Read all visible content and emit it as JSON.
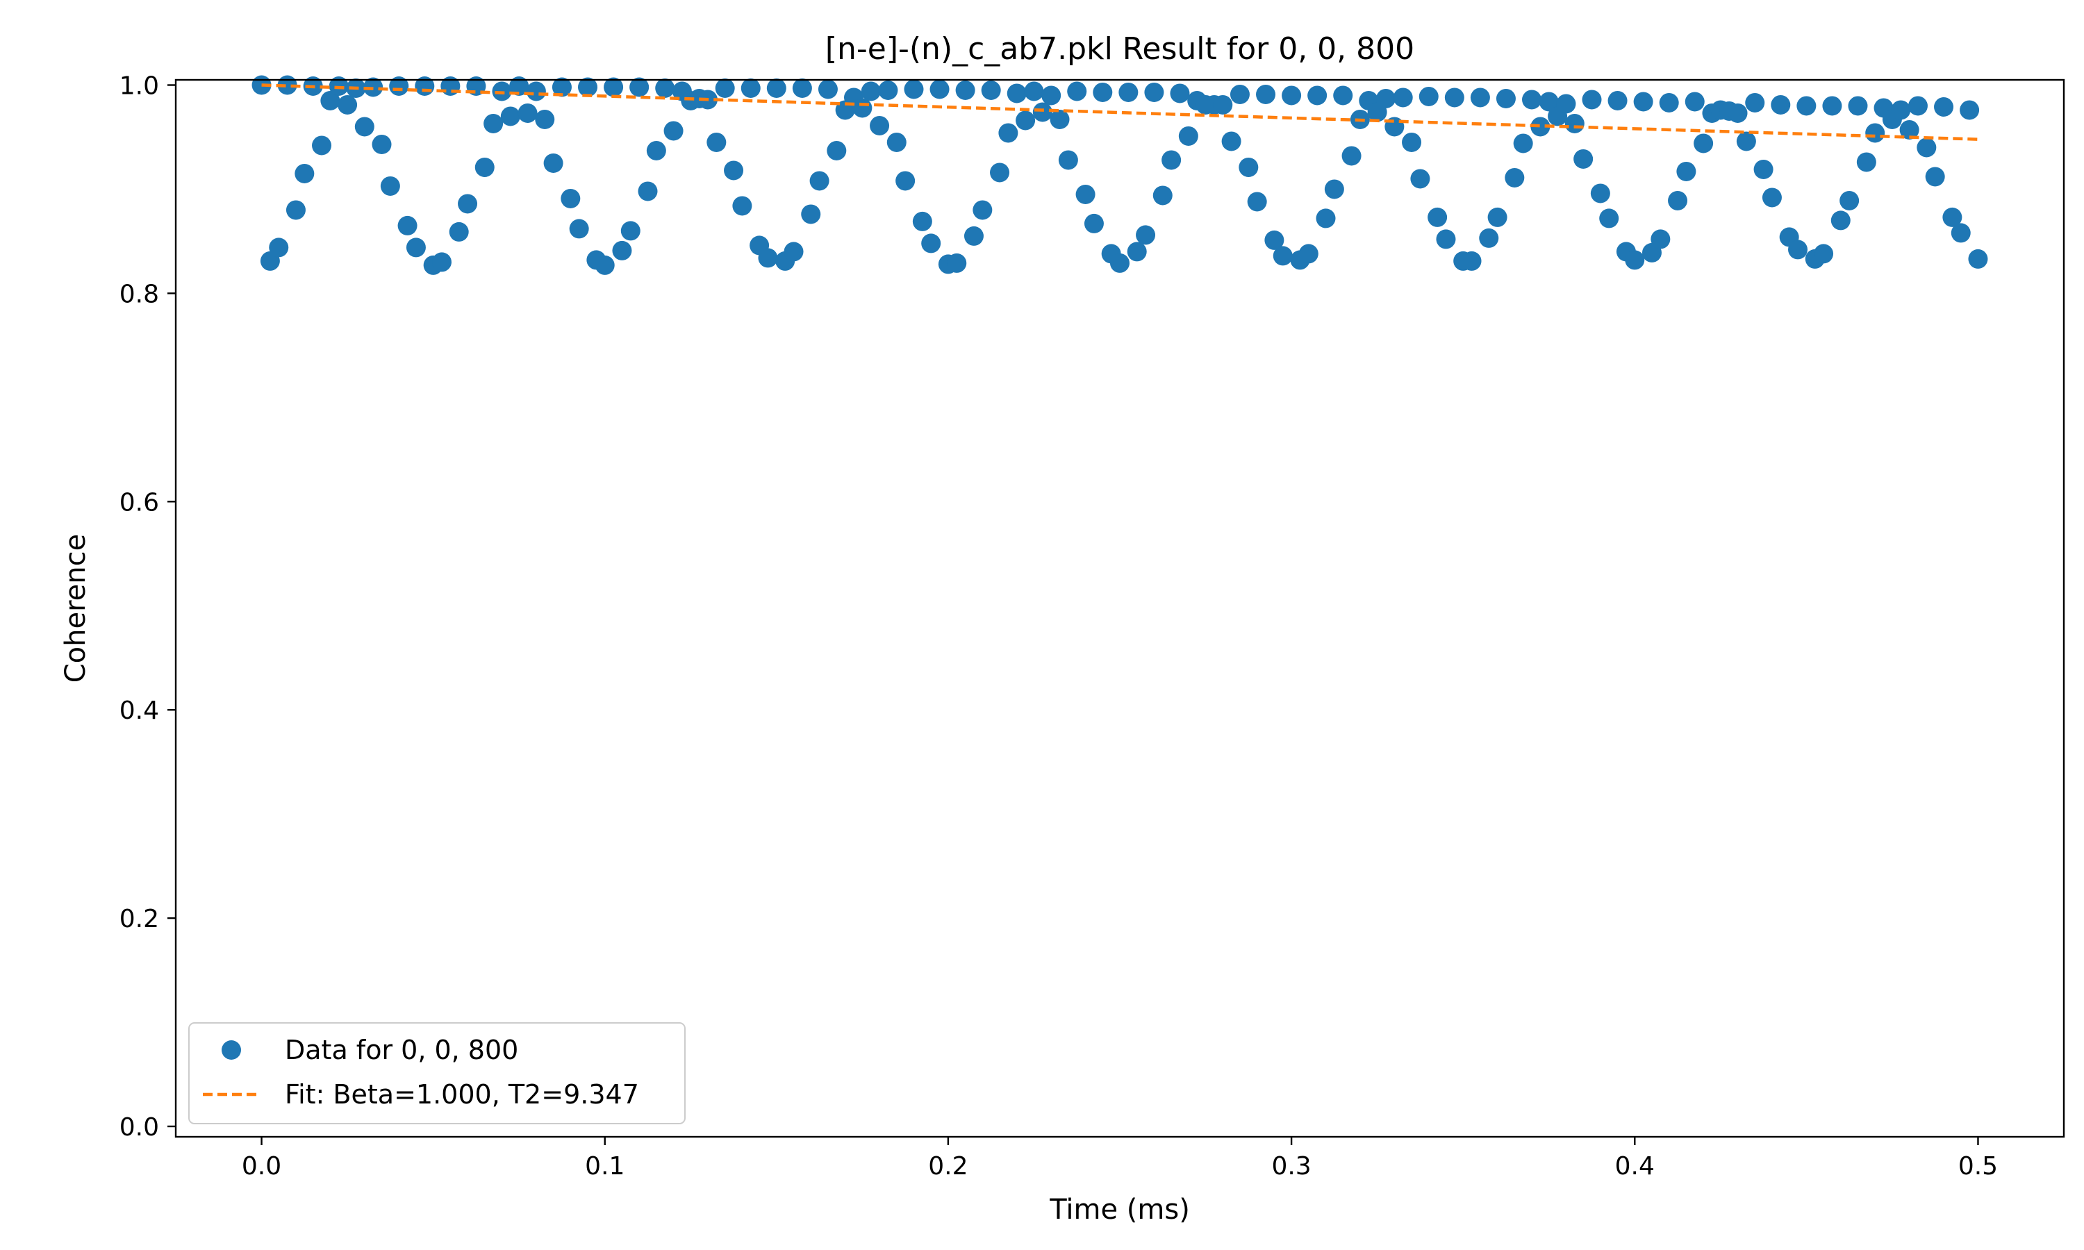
{
  "colors": {
    "data": "#1f77b4",
    "fit": "#ff7f0e",
    "axes": "#000000",
    "legend_border": "#cccccc",
    "background": "#ffffff"
  },
  "chart_data": {
    "type": "scatter",
    "title": "[n-e]-(n)_c_ab7.pkl Result for 0, 0, 800",
    "xlabel": "Time (ms)",
    "ylabel": "Coherence",
    "xlim": [
      -0.025,
      0.525
    ],
    "ylim": [
      -0.01,
      1.005
    ],
    "xticks": [
      0.0,
      0.1,
      0.2,
      0.3,
      0.4,
      0.5
    ],
    "xtick_labels": [
      "0.0",
      "0.1",
      "0.2",
      "0.3",
      "0.4",
      "0.5"
    ],
    "yticks": [
      0.0,
      0.2,
      0.4,
      0.6,
      0.8,
      1.0
    ],
    "ytick_labels": [
      "0.0",
      "0.2",
      "0.4",
      "0.6",
      "0.8",
      "1.0"
    ],
    "grid": false,
    "legend_position": "lower-left",
    "series": [
      {
        "name": "Data for 0, 0, 800",
        "kind": "scatter",
        "marker": "circle",
        "x": [
          0.0,
          0.0025,
          0.005,
          0.0075,
          0.01,
          0.0125,
          0.015,
          0.0175,
          0.02,
          0.0225,
          0.025,
          0.0275,
          0.03,
          0.0325,
          0.035,
          0.0375,
          0.04,
          0.0425,
          0.045,
          0.0475,
          0.05,
          0.0525,
          0.055,
          0.0575,
          0.06,
          0.0625,
          0.065,
          0.0675,
          0.07,
          0.0725,
          0.075,
          0.0775,
          0.08,
          0.0825,
          0.085,
          0.0875,
          0.09,
          0.0925,
          0.095,
          0.0975,
          0.1,
          0.1025,
          0.105,
          0.1075,
          0.11,
          0.1125,
          0.115,
          0.1175,
          0.12,
          0.1225,
          0.125,
          0.1275,
          0.13,
          0.1325,
          0.135,
          0.1375,
          0.14,
          0.1425,
          0.145,
          0.1475,
          0.15,
          0.1525,
          0.155,
          0.1575,
          0.16,
          0.1625,
          0.165,
          0.1675,
          0.17,
          0.1725,
          0.175,
          0.1775,
          0.18,
          0.1825,
          0.185,
          0.1875,
          0.19,
          0.1925,
          0.195,
          0.1975,
          0.2,
          0.2025,
          0.205,
          0.2075,
          0.21,
          0.2125,
          0.215,
          0.2175,
          0.22,
          0.2225,
          0.225,
          0.2275,
          0.23,
          0.2325,
          0.235,
          0.2375,
          0.24,
          0.2425,
          0.245,
          0.2475,
          0.25,
          0.2525,
          0.255,
          0.2575,
          0.26,
          0.2625,
          0.265,
          0.2675,
          0.27,
          0.2725,
          0.275,
          0.2775,
          0.28,
          0.2825,
          0.285,
          0.2875,
          0.29,
          0.2925,
          0.295,
          0.2975,
          0.3,
          0.3025,
          0.305,
          0.3075,
          0.31,
          0.3125,
          0.315,
          0.3175,
          0.32,
          0.3225,
          0.325,
          0.3275,
          0.33,
          0.3325,
          0.335,
          0.3375,
          0.34,
          0.3425,
          0.345,
          0.3475,
          0.35,
          0.3525,
          0.355,
          0.3575,
          0.36,
          0.3625,
          0.365,
          0.3675,
          0.37,
          0.3725,
          0.375,
          0.3775,
          0.38,
          0.3825,
          0.385,
          0.3875,
          0.39,
          0.3925,
          0.395,
          0.3975,
          0.4,
          0.4025,
          0.405,
          0.4075,
          0.41,
          0.4125,
          0.415,
          0.4175,
          0.42,
          0.4225,
          0.425,
          0.4275,
          0.43,
          0.4325,
          0.435,
          0.4375,
          0.44,
          0.4425,
          0.445,
          0.4475,
          0.45,
          0.4525,
          0.455,
          0.4575,
          0.46,
          0.4625,
          0.465,
          0.4675,
          0.47,
          0.4725,
          0.475,
          0.4775,
          0.48,
          0.4825,
          0.485,
          0.4875,
          0.49,
          0.4925,
          0.495,
          0.4975,
          0.5
        ],
        "y": [
          1.0,
          0.831,
          0.844,
          1.0,
          0.88,
          0.915,
          0.999,
          0.942,
          0.985,
          0.999,
          0.981,
          0.997,
          0.96,
          0.998,
          0.943,
          0.903,
          0.999,
          0.865,
          0.844,
          0.999,
          0.827,
          0.83,
          0.999,
          0.859,
          0.886,
          0.999,
          0.921,
          0.963,
          0.994,
          0.97,
          0.999,
          0.973,
          0.994,
          0.967,
          0.925,
          0.998,
          0.891,
          0.862,
          0.998,
          0.832,
          0.827,
          0.998,
          0.841,
          0.86,
          0.998,
          0.898,
          0.937,
          0.997,
          0.956,
          0.994,
          0.985,
          0.987,
          0.986,
          0.945,
          0.997,
          0.918,
          0.884,
          0.997,
          0.846,
          0.834,
          0.997,
          0.831,
          0.84,
          0.997,
          0.876,
          0.908,
          0.996,
          0.937,
          0.976,
          0.988,
          0.978,
          0.994,
          0.961,
          0.995,
          0.945,
          0.908,
          0.996,
          0.869,
          0.848,
          0.996,
          0.828,
          0.829,
          0.995,
          0.855,
          0.88,
          0.995,
          0.916,
          0.954,
          0.992,
          0.966,
          0.994,
          0.974,
          0.99,
          0.967,
          0.928,
          0.994,
          0.895,
          0.867,
          0.993,
          0.838,
          0.829,
          0.993,
          0.84,
          0.856,
          0.993,
          0.894,
          0.928,
          0.992,
          0.951,
          0.985,
          0.981,
          0.981,
          0.981,
          0.946,
          0.991,
          0.921,
          0.888,
          0.991,
          0.851,
          0.836,
          0.99,
          0.832,
          0.838,
          0.99,
          0.872,
          0.9,
          0.99,
          0.932,
          0.967,
          0.985,
          0.974,
          0.987,
          0.96,
          0.988,
          0.945,
          0.91,
          0.989,
          0.873,
          0.852,
          0.988,
          0.831,
          0.831,
          0.988,
          0.853,
          0.873,
          0.987,
          0.911,
          0.944,
          0.986,
          0.96,
          0.984,
          0.97,
          0.982,
          0.963,
          0.929,
          0.986,
          0.896,
          0.872,
          0.985,
          0.84,
          0.832,
          0.984,
          0.839,
          0.852,
          0.983,
          0.889,
          0.917,
          0.984,
          0.944,
          0.973,
          0.976,
          0.975,
          0.973,
          0.946,
          0.983,
          0.919,
          0.892,
          0.981,
          0.854,
          0.842,
          0.98,
          0.833,
          0.838,
          0.98,
          0.87,
          0.889,
          0.98,
          0.926,
          0.954,
          0.978,
          0.967,
          0.976,
          0.957,
          0.98,
          0.94,
          0.912,
          0.979,
          0.873,
          0.858,
          0.976,
          0.833
        ]
      },
      {
        "name": "Fit: Beta=1.000, T2=9.347",
        "kind": "line",
        "style": "dashed",
        "x": [
          0.0,
          0.05,
          0.1,
          0.15,
          0.2,
          0.25,
          0.3,
          0.35,
          0.4,
          0.45,
          0.5
        ],
        "y": [
          1.0,
          0.9947,
          0.9894,
          0.9841,
          0.9788,
          0.9736,
          0.9684,
          0.9632,
          0.9581,
          0.953,
          0.9479
        ]
      }
    ]
  }
}
